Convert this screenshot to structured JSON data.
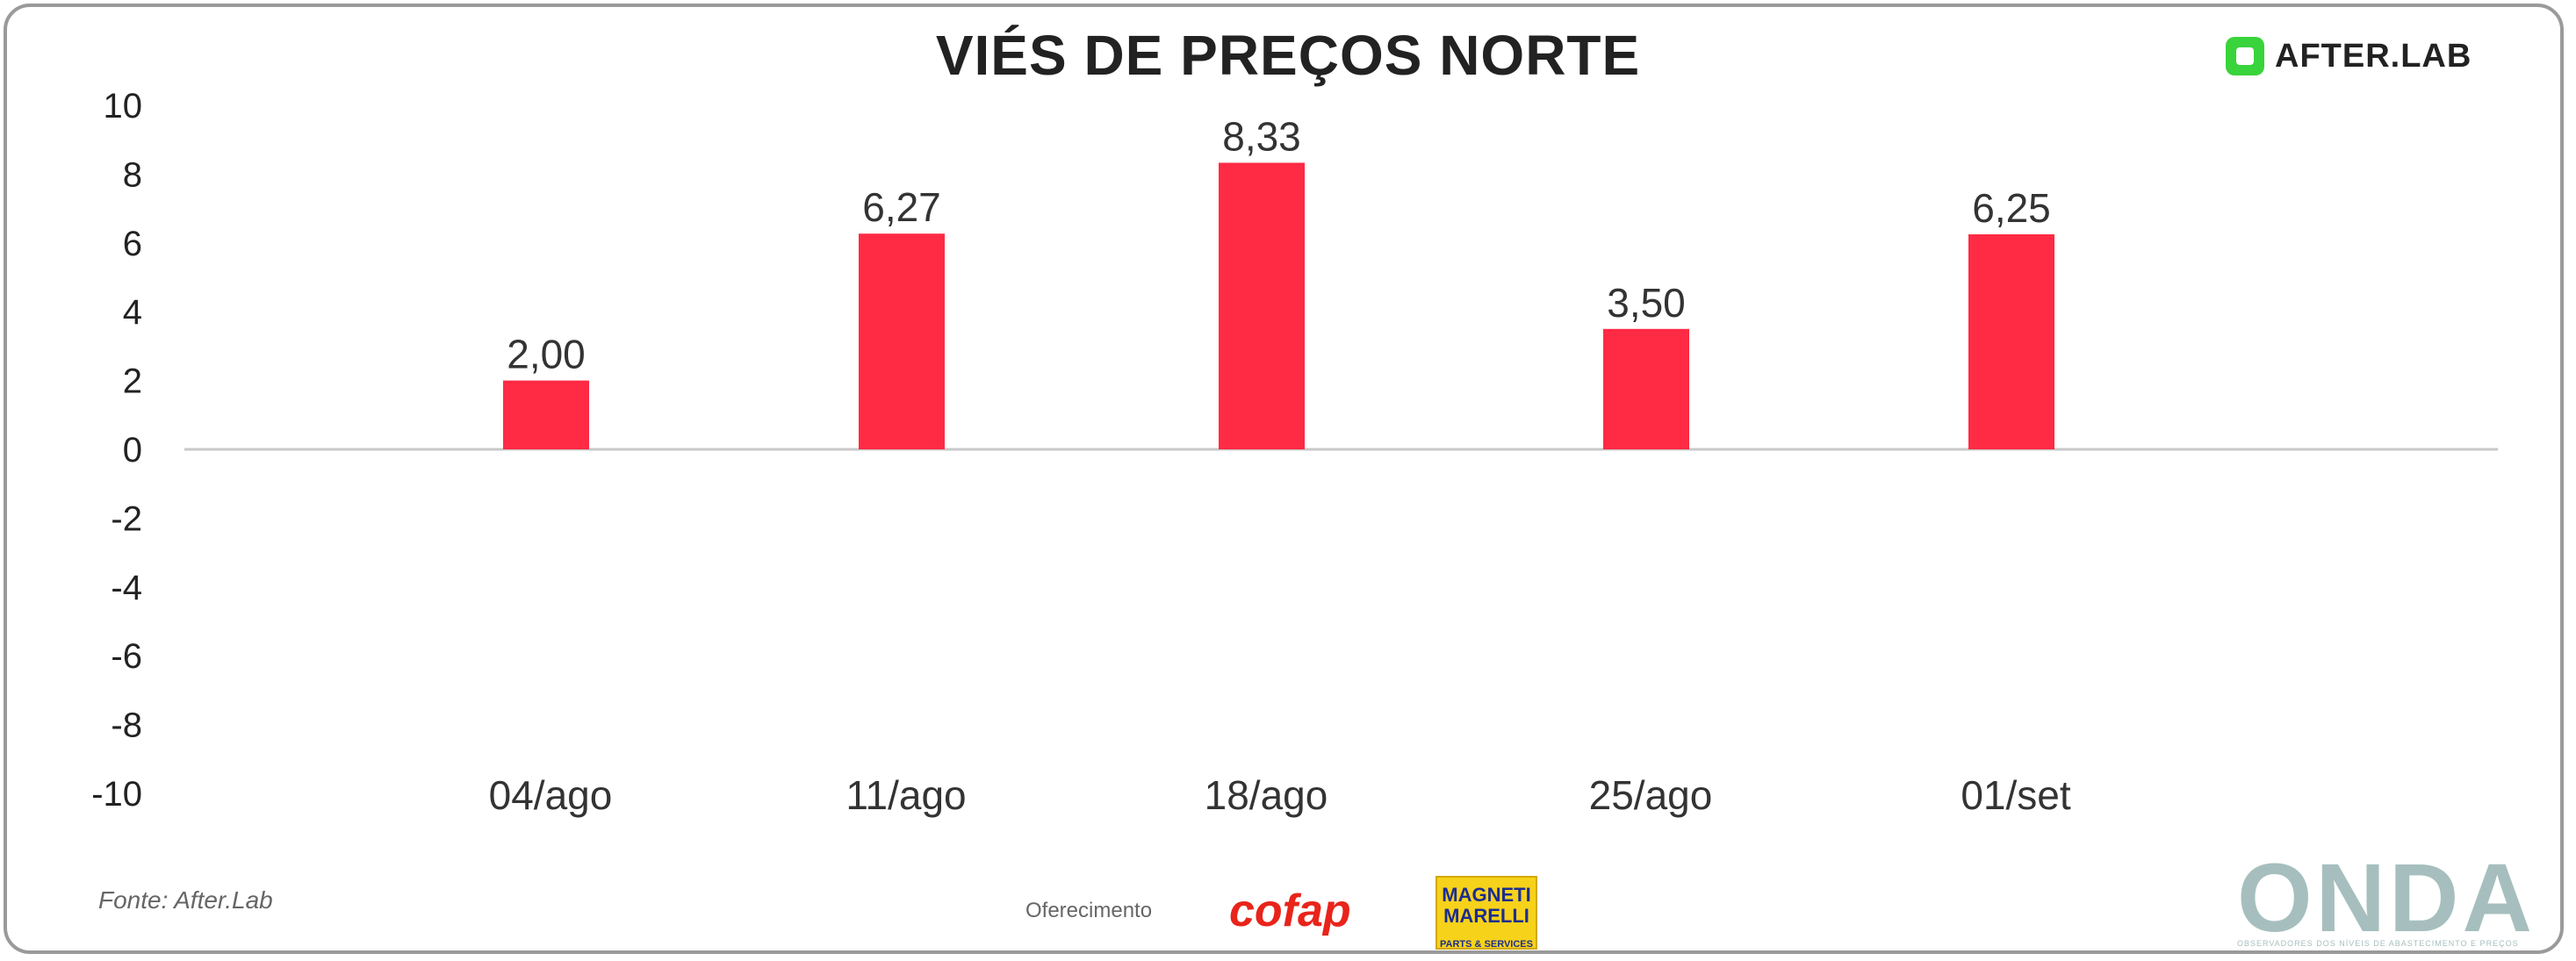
{
  "header": {
    "title": "VIÉS DE PREÇOS NORTE"
  },
  "brand": {
    "name": "AFTER.LAB"
  },
  "footer": {
    "source": "Fonte: After.Lab",
    "sponsor_label": "Oferecimento",
    "cofap": "cofap",
    "magneti_top": "MAGNETI MARELLI",
    "magneti_bottom": "PARTS & SERVICES",
    "onda": "ONDA",
    "onda_tagline": "OBSERVADORES DOS NÍVEIS DE ABASTECIMENTO E PREÇOS"
  },
  "colors": {
    "bar": "#ff2a44",
    "axis": "#c8c8c8"
  },
  "chart_data": {
    "type": "bar",
    "title": "VIÉS DE PREÇOS NORTE",
    "categories": [
      "04/ago",
      "11/ago",
      "18/ago",
      "25/ago",
      "01/set"
    ],
    "values": [
      2.0,
      6.27,
      8.33,
      3.5,
      6.25
    ],
    "data_labels": [
      "2,00",
      "6,27",
      "8,33",
      "3,50",
      "6,25"
    ],
    "ylim": [
      -10,
      10
    ],
    "yticks": [
      10,
      8,
      6,
      4,
      2,
      0,
      -2,
      -4,
      -6,
      -8,
      -10
    ],
    "xlabel": "",
    "ylabel": "",
    "grid": false,
    "legend": "none"
  }
}
